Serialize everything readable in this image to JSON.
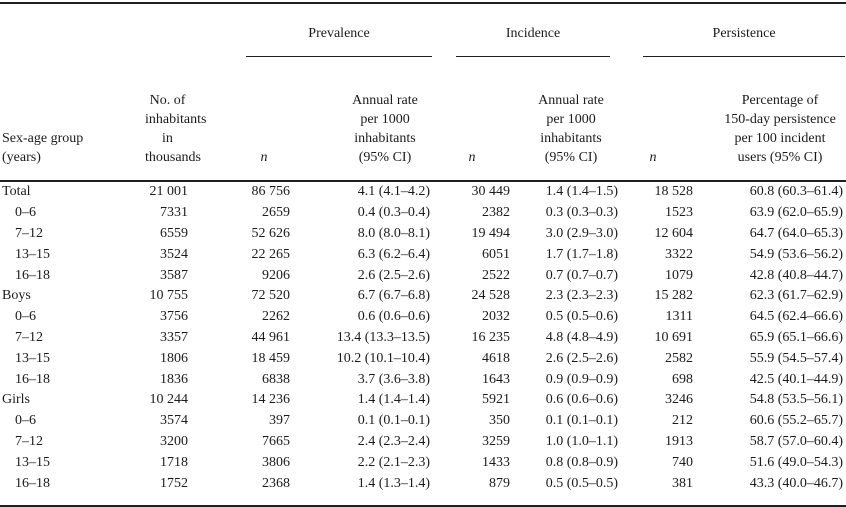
{
  "table": {
    "groups": [
      {
        "label": "Prevalence"
      },
      {
        "label": "Incidence"
      },
      {
        "label": "Persistence"
      }
    ],
    "headers": {
      "sex_age_group": "Sex-age group\n(years)",
      "inhabitants": "No. of\ninhabitants\nin thousands",
      "n_label": "n",
      "annual_rate": "Annual rate\nper 1000\ninhabitants\n(95% CI)",
      "persistence_rate": "Percentage of\n150-day persistence\nper 100 incident\nusers (95% CI)"
    },
    "rows": [
      {
        "group": "Total",
        "inhabitants": "21 001",
        "prev_n": "86 756",
        "prev_rate": "4.1 (4.1–4.2)",
        "inc_n": "30 449",
        "inc_rate": "1.4 (1.4–1.5)",
        "pers_n": "18 528",
        "pers_rate": "60.8 (60.3–61.4)"
      },
      {
        "group": "0–6",
        "inhabitants": "7331",
        "prev_n": "2659",
        "prev_rate": "0.4 (0.3–0.4)",
        "inc_n": "2382",
        "inc_rate": "0.3 (0.3–0.3)",
        "pers_n": "1523",
        "pers_rate": "63.9 (62.0–65.9)"
      },
      {
        "group": "7–12",
        "inhabitants": "6559",
        "prev_n": "52 626",
        "prev_rate": "8.0 (8.0–8.1)",
        "inc_n": "19 494",
        "inc_rate": "3.0 (2.9–3.0)",
        "pers_n": "12 604",
        "pers_rate": "64.7 (64.0–65.3)"
      },
      {
        "group": "13–15",
        "inhabitants": "3524",
        "prev_n": "22 265",
        "prev_rate": "6.3 (6.2–6.4)",
        "inc_n": "6051",
        "inc_rate": "1.7 (1.7–1.8)",
        "pers_n": "3322",
        "pers_rate": "54.9 (53.6–56.2)"
      },
      {
        "group": "16–18",
        "inhabitants": "3587",
        "prev_n": "9206",
        "prev_rate": "2.6 (2.5–2.6)",
        "inc_n": "2522",
        "inc_rate": "0.7 (0.7–0.7)",
        "pers_n": "1079",
        "pers_rate": "42.8 (40.8–44.7)"
      },
      {
        "group": "Boys",
        "inhabitants": "10 755",
        "prev_n": "72 520",
        "prev_rate": "6.7 (6.7–6.8)",
        "inc_n": "24 528",
        "inc_rate": "2.3 (2.3–2.3)",
        "pers_n": "15 282",
        "pers_rate": "62.3 (61.7–62.9)"
      },
      {
        "group": "0–6",
        "inhabitants": "3756",
        "prev_n": "2262",
        "prev_rate": "0.6 (0.6–0.6)",
        "inc_n": "2032",
        "inc_rate": "0.5 (0.5–0.6)",
        "pers_n": "1311",
        "pers_rate": "64.5 (62.4–66.6)"
      },
      {
        "group": "7–12",
        "inhabitants": "3357",
        "prev_n": "44 961",
        "prev_rate": "13.4 (13.3–13.5)",
        "inc_n": "16 235",
        "inc_rate": "4.8 (4.8–4.9)",
        "pers_n": "10 691",
        "pers_rate": "65.9 (65.1–66.6)"
      },
      {
        "group": "13–15",
        "inhabitants": "1806",
        "prev_n": "18 459",
        "prev_rate": "10.2 (10.1–10.4)",
        "inc_n": "4618",
        "inc_rate": "2.6 (2.5–2.6)",
        "pers_n": "2582",
        "pers_rate": "55.9 (54.5–57.4)"
      },
      {
        "group": "16–18",
        "inhabitants": "1836",
        "prev_n": "6838",
        "prev_rate": "3.7 (3.6–3.8)",
        "inc_n": "1643",
        "inc_rate": "0.9 (0.9–0.9)",
        "pers_n": "698",
        "pers_rate": "42.5 (40.1–44.9)"
      },
      {
        "group": "Girls",
        "inhabitants": "10 244",
        "prev_n": "14 236",
        "prev_rate": "1.4 (1.4–1.4)",
        "inc_n": "5921",
        "inc_rate": "0.6 (0.6–0.6)",
        "pers_n": "3246",
        "pers_rate": "54.8 (53.5–56.1)"
      },
      {
        "group": "0–6",
        "inhabitants": "3574",
        "prev_n": "397",
        "prev_rate": "0.1 (0.1–0.1)",
        "inc_n": "350",
        "inc_rate": "0.1 (0.1–0.1)",
        "pers_n": "212",
        "pers_rate": "60.6 (55.2–65.7)"
      },
      {
        "group": "7–12",
        "inhabitants": "3200",
        "prev_n": "7665",
        "prev_rate": "2.4 (2.3–2.4)",
        "inc_n": "3259",
        "inc_rate": "1.0 (1.0–1.1)",
        "pers_n": "1913",
        "pers_rate": "58.7 (57.0–60.4)"
      },
      {
        "group": "13–15",
        "inhabitants": "1718",
        "prev_n": "3806",
        "prev_rate": "2.2 (2.1–2.3)",
        "inc_n": "1433",
        "inc_rate": "0.8 (0.8–0.9)",
        "pers_n": "740",
        "pers_rate": "51.6 (49.0–54.3)"
      },
      {
        "group": "16–18",
        "inhabitants": "1752",
        "prev_n": "2368",
        "prev_rate": "1.4 (1.3–1.4)",
        "inc_n": "879",
        "inc_rate": "0.5 (0.5–0.5)",
        "pers_n": "381",
        "pers_rate": "43.3 (40.0–46.7)"
      }
    ]
  }
}
